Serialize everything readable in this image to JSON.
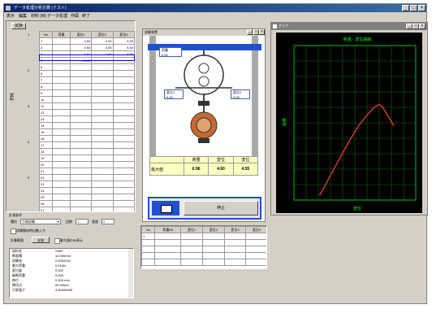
{
  "window": {
    "title": "データ処理分析計算 (テスト)"
  },
  "menu": [
    "表示",
    "編集",
    "材料 (M)",
    "データ処理",
    "作図",
    "終了"
  ],
  "left_panel": {
    "tab_label": "試験",
    "columns": [
      "No",
      "荷重",
      "変位1",
      "変位2",
      "変位3"
    ],
    "rows": [
      [
        "1",
        "",
        "4.60",
        "4.62",
        "4.55"
      ],
      [
        "2",
        "",
        "4.60",
        "4.65",
        "4.60"
      ],
      [
        "3",
        "",
        "4.61",
        "4.66",
        "4.65"
      ],
      [
        "4",
        "",
        "0.000",
        "",
        ""
      ],
      [
        "5",
        "",
        "",
        "",
        ""
      ],
      [
        "6",
        "",
        "",
        "",
        ""
      ],
      [
        "7",
        "",
        "",
        "",
        ""
      ],
      [
        "8",
        "",
        "",
        "",
        ""
      ],
      [
        "9",
        "",
        "",
        "",
        ""
      ],
      [
        "10",
        "",
        "",
        "",
        ""
      ],
      [
        "11",
        "",
        "",
        "",
        ""
      ],
      [
        "12",
        "",
        "",
        "",
        ""
      ],
      [
        "13",
        "",
        "",
        "",
        ""
      ],
      [
        "14",
        "",
        "",
        "",
        ""
      ],
      [
        "15",
        "",
        "",
        "",
        ""
      ],
      [
        "16",
        "",
        "",
        "",
        ""
      ],
      [
        "17",
        "",
        "",
        "",
        ""
      ],
      [
        "18",
        "",
        "",
        "",
        ""
      ],
      [
        "19",
        "",
        "",
        "",
        ""
      ],
      [
        "20",
        "",
        "",
        "",
        ""
      ],
      [
        "21",
        "",
        "",
        "",
        ""
      ],
      [
        "22",
        "",
        "",
        "",
        ""
      ],
      [
        "23",
        "",
        "",
        "",
        ""
      ],
      [
        "24",
        "",
        "",
        "",
        ""
      ],
      [
        "25",
        "",
        "",
        "",
        ""
      ],
      [
        "26",
        "",
        "",
        "",
        ""
      ],
      [
        "27",
        "",
        "",
        "",
        ""
      ],
      [
        "28",
        "",
        "",
        "",
        ""
      ],
      [
        "29",
        "",
        "",
        "",
        ""
      ]
    ],
    "group_labels": [
      "1",
      "2",
      "3",
      "4",
      "5"
    ],
    "side_vertical_label": "試料"
  },
  "settings": {
    "section_label": "計測条件",
    "material_label": "種別",
    "material_value": "引張試験",
    "count_label": "回数",
    "count_value": "1",
    "speed_label": "速度",
    "speed_value": "2",
    "checkbox_label": "試験開始時自動入力",
    "option_label": "計算範囲",
    "option_value": "全域",
    "option2_label": "最大値のみ表示"
  },
  "summary": {
    "lines": [
      [
        "試料名",
        "S45C"
      ],
      [
        "断面積",
        "12.000mm"
      ],
      [
        "試験長",
        "2.0000000"
      ],
      [
        "最大荷重",
        "0.01kN"
      ],
      [
        "変位量",
        "0.000"
      ],
      [
        "破断荷重",
        "0.000"
      ],
      [
        "伸び",
        "0.000 mm"
      ],
      [
        "降伏点",
        "99.99mm"
      ],
      [
        "引張強さ",
        "4.00000000"
      ]
    ]
  },
  "apparatus": {
    "window_title": "試験装置",
    "gauge_labels": [
      "荷重",
      "変位1",
      "変位2"
    ],
    "gauge_values": [
      "0.00",
      "0.00",
      "0.00"
    ],
    "readout_headers": [
      "荷重",
      "変位",
      "変位"
    ],
    "readout_row_label": "最大値",
    "readout_values": [
      "6.96",
      "4.60",
      "4.55"
    ],
    "button_label": "停止"
  },
  "bottom_table": {
    "columns": [
      "No",
      "荷重kN",
      "変位1",
      "変位2",
      "変位3",
      "変位4"
    ],
    "rows": [
      [
        "1",
        "",
        "",
        "",
        "",
        ""
      ],
      [
        "",
        "",
        "",
        "",
        "",
        ""
      ],
      [
        "",
        "",
        "",
        "",
        "",
        ""
      ],
      [
        "",
        "",
        "",
        "",
        "",
        ""
      ],
      [
        "",
        "",
        "",
        "",
        "",
        ""
      ]
    ]
  },
  "graph_window": {
    "title": "グラフ",
    "plot_title": "荷重 - 変位曲線",
    "ylabel": "荷重",
    "xlabel": "変位"
  },
  "chart_data": {
    "type": "line",
    "title": "荷重 - 変位曲線",
    "xlabel": "変位",
    "ylabel": "荷重",
    "xlim": [
      0,
      10
    ],
    "ylim": [
      0,
      10
    ],
    "grid": true,
    "series": [
      {
        "x": [
          2.1,
          2.6,
          3.2,
          3.9,
          4.6,
          5.3,
          6.0,
          6.6,
          7.0,
          7.3,
          7.6,
          7.9,
          8.2
        ],
        "y": [
          0.3,
          1.0,
          1.9,
          2.9,
          3.9,
          4.8,
          5.5,
          6.0,
          6.2,
          6.0,
          5.6,
          5.2,
          4.8
        ],
        "color": "#c0392b"
      }
    ]
  }
}
